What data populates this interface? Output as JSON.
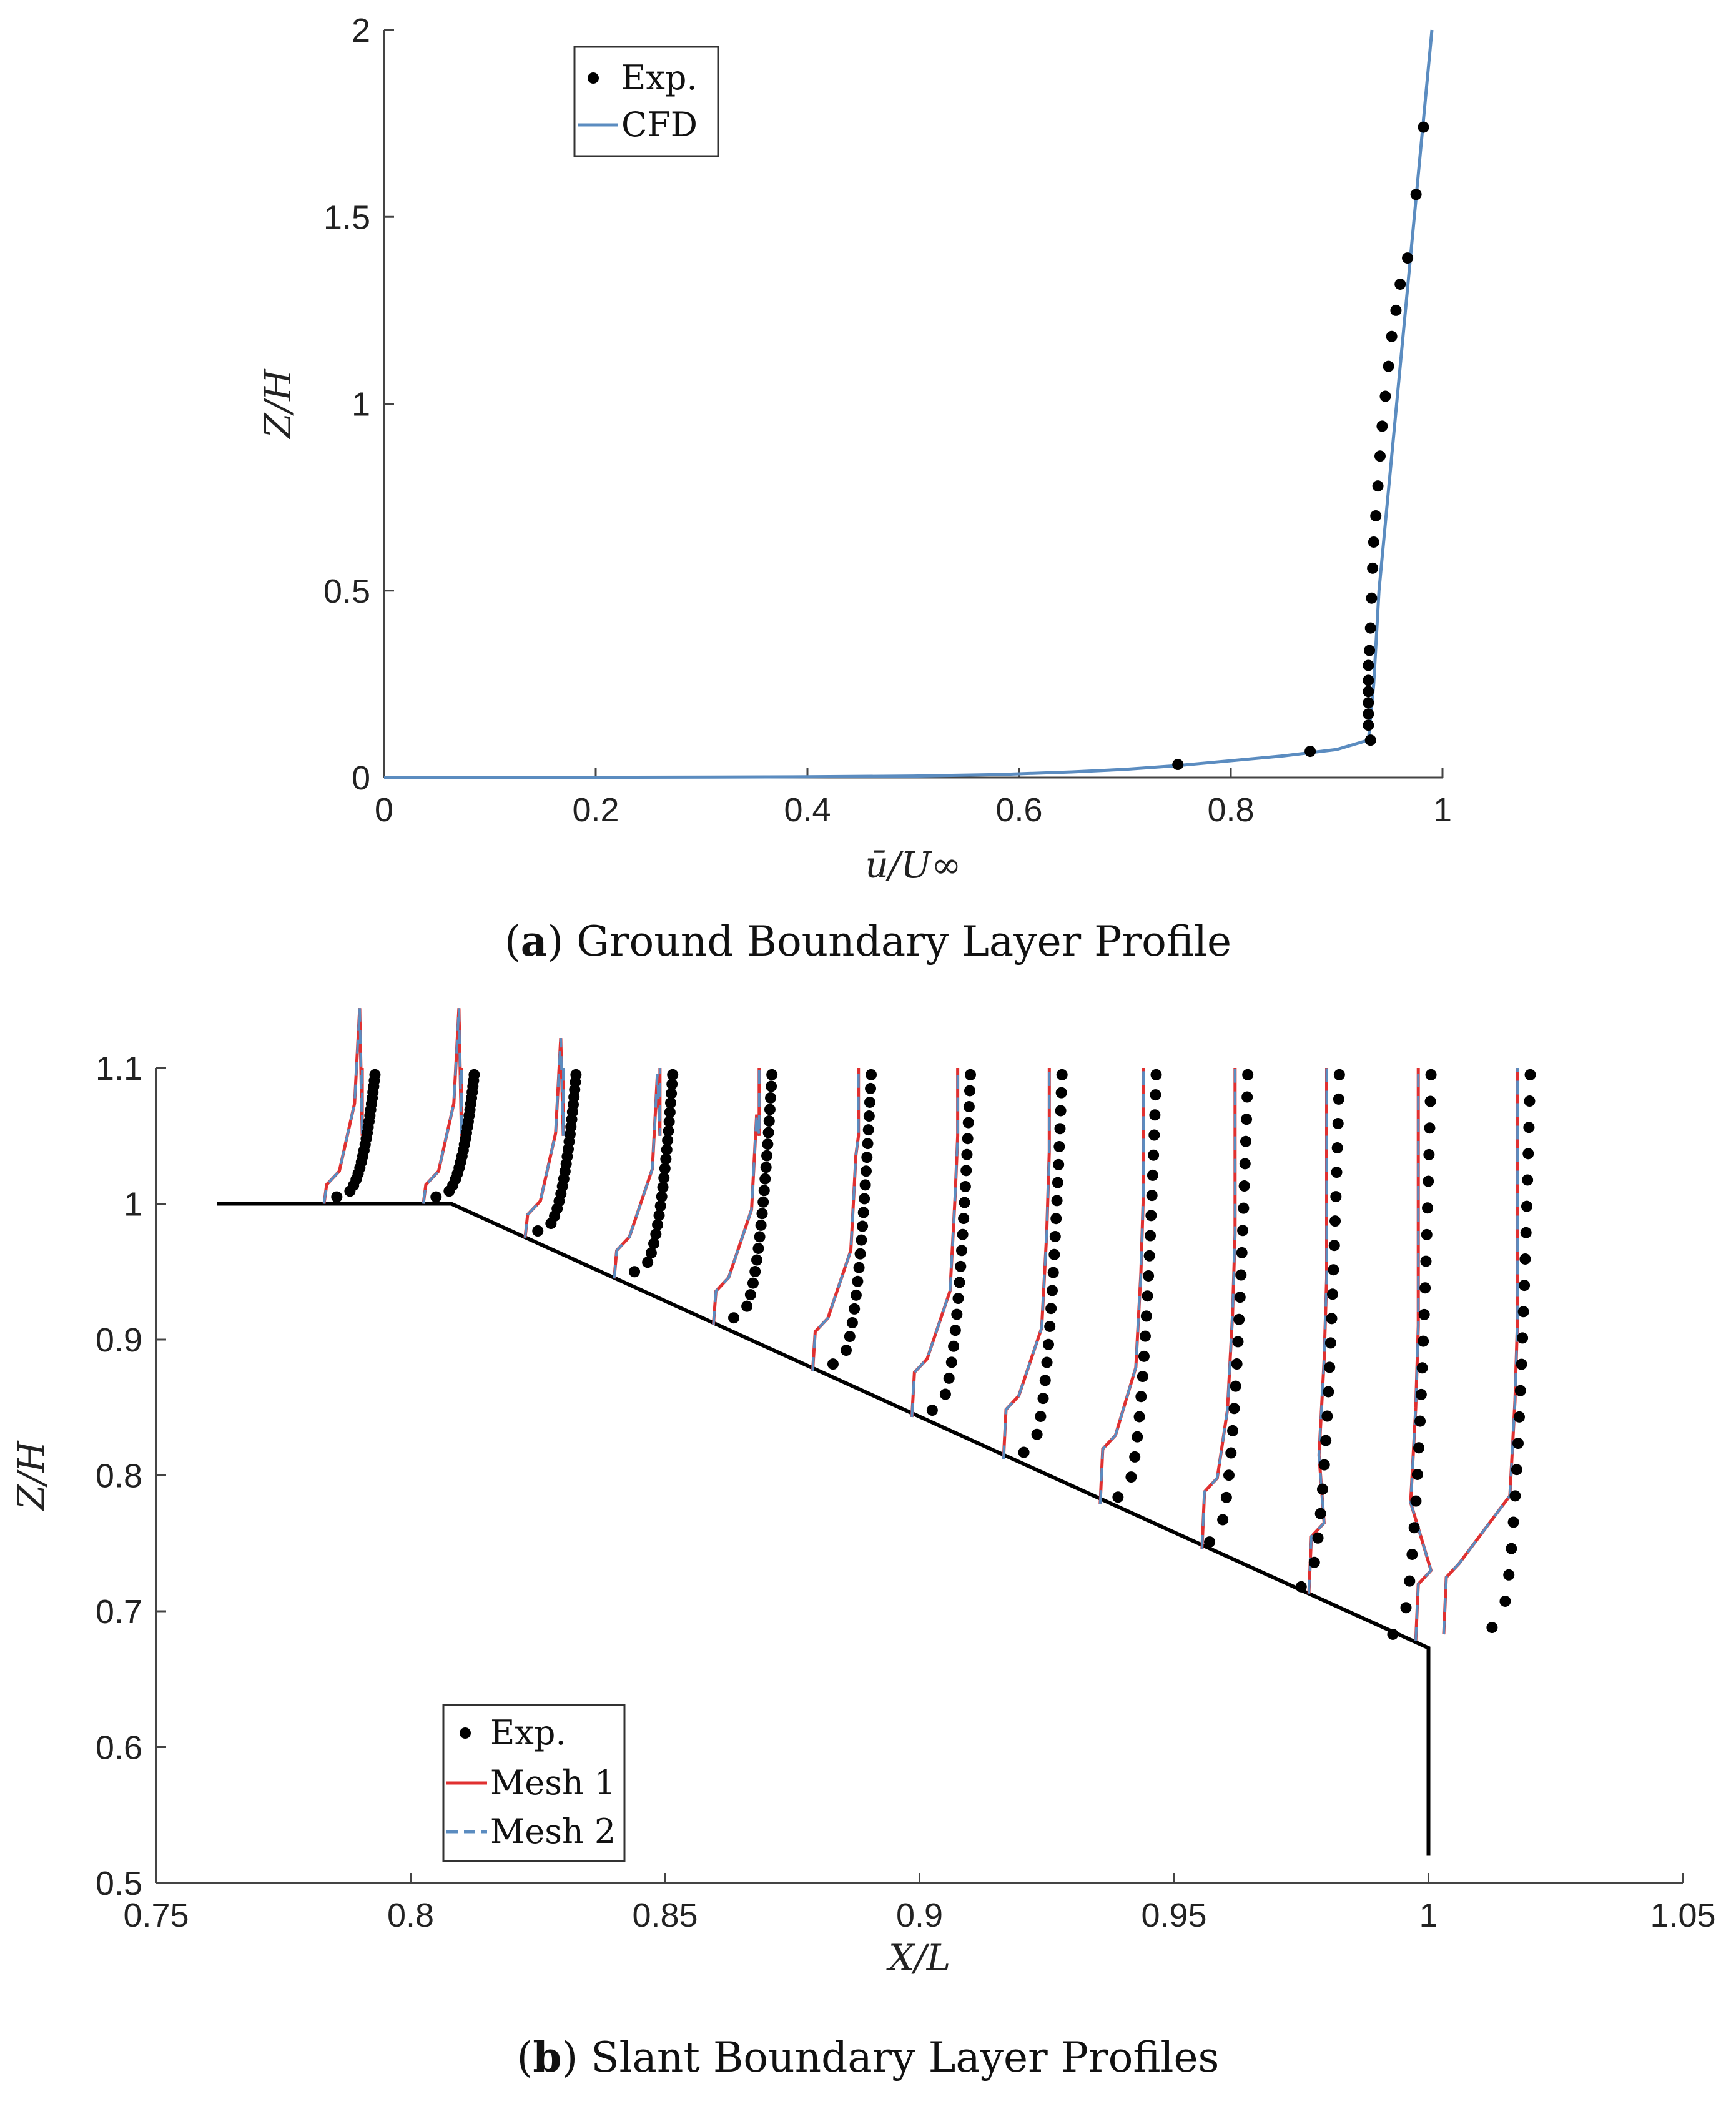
{
  "captions": {
    "a_letter": "a",
    "a_text": "Ground Boundary Layer Profile",
    "b_letter": "b",
    "b_text": "Slant Boundary Layer Profiles"
  },
  "colors": {
    "exp": "#000000",
    "cfd": "#5b8cc0",
    "mesh1": "#e03030",
    "mesh2": "#5b8cc0",
    "geometry": "#000000"
  },
  "chart_data": [
    {
      "type": "line",
      "xlabel": "ū/U∞",
      "ylabel": "Z/H",
      "xlim": [
        0,
        1
      ],
      "ylim": [
        0,
        2
      ],
      "xticks": [
        "0",
        "0.2",
        "0.4",
        "0.6",
        "0.8",
        "1"
      ],
      "yticks": [
        "0",
        "0.5",
        "1",
        "1.5",
        "2"
      ],
      "grid": false,
      "legend": {
        "position": "top-left",
        "entries": [
          "Exp.",
          "CFD"
        ]
      },
      "series": [
        {
          "name": "Exp.",
          "style": "markers",
          "x": [
            0.75,
            0.875,
            0.932,
            0.93,
            0.93,
            0.93,
            0.93,
            0.93,
            0.93,
            0.931,
            0.932,
            0.933,
            0.934,
            0.935,
            0.937,
            0.939,
            0.941,
            0.943,
            0.946,
            0.949,
            0.952,
            0.956,
            0.96,
            0.967,
            0.975,
            0.982
          ],
          "y": [
            0.035,
            0.07,
            0.1,
            0.14,
            0.17,
            0.2,
            0.23,
            0.26,
            0.3,
            0.34,
            0.4,
            0.48,
            0.56,
            0.63,
            0.7,
            0.78,
            0.86,
            0.94,
            1.02,
            1.1,
            1.18,
            1.25,
            1.32,
            1.39,
            1.56,
            1.74
          ]
        },
        {
          "name": "CFD",
          "style": "line",
          "x": [
            0,
            0.2,
            0.4,
            0.5,
            0.58,
            0.65,
            0.7,
            0.75,
            0.8,
            0.85,
            0.9,
            0.93,
            0.935,
            0.94,
            0.95,
            0.96,
            0.97,
            0.98,
            0.99
          ],
          "y": [
            0,
            0.0005,
            0.002,
            0.004,
            0.008,
            0.015,
            0.022,
            0.032,
            0.045,
            0.058,
            0.075,
            0.1,
            0.25,
            0.5,
            0.8,
            1.1,
            1.4,
            1.7,
            2.0
          ]
        }
      ]
    },
    {
      "type": "line",
      "xlabel": "X/L",
      "ylabel": "Z/H",
      "xlim": [
        0.75,
        1.05
      ],
      "ylim": [
        0.5,
        1.1
      ],
      "xticks": [
        "0.75",
        "0.8",
        "0.85",
        "0.9",
        "0.95",
        "1",
        "1.05"
      ],
      "yticks": [
        "0.5",
        "0.6",
        "0.7",
        "0.8",
        "0.9",
        "1",
        "1.1"
      ],
      "grid": false,
      "legend": {
        "position": "bottom-left",
        "entries": [
          "Exp.",
          "Mesh 1",
          "Mesh 2"
        ]
      },
      "geometry": {
        "x": [
          0.762,
          0.808,
          1.0,
          1.0
        ],
        "y": [
          1.0,
          1.0,
          0.673,
          0.52
        ]
      },
      "profiles": [
        {
          "x0": 0.783,
          "xwall": 0.783,
          "ywall": 1.0,
          "dcfd": 0.0075,
          "dexp": 0.0075
        },
        {
          "x0": 0.8025,
          "xwall": 0.8025,
          "ywall": 1.0,
          "dcfd": 0.0075,
          "dexp": 0.0075
        },
        {
          "x0": 0.8225,
          "xwall": 0.8225,
          "ywall": 0.975,
          "dcfd": 0.0075,
          "dexp": 0.0075
        },
        {
          "x0": 0.8415,
          "xwall": 0.84,
          "ywall": 0.945,
          "dcfd": 0.0075,
          "dexp": 0.0075
        },
        {
          "x0": 0.861,
          "xwall": 0.8595,
          "ywall": 0.911,
          "dcfd": 0.0075,
          "dexp": 0.0075
        },
        {
          "x0": 0.8805,
          "xwall": 0.879,
          "ywall": 0.877,
          "dcfd": 0.0075,
          "dexp": 0.0075
        },
        {
          "x0": 0.9,
          "xwall": 0.8985,
          "ywall": 0.843,
          "dcfd": 0.0075,
          "dexp": 0.0075
        },
        {
          "x0": 0.918,
          "xwall": 0.9165,
          "ywall": 0.812,
          "dcfd": 0.0075,
          "dexp": 0.0075
        },
        {
          "x0": 0.9365,
          "xwall": 0.9355,
          "ywall": 0.779,
          "dcfd": 0.0075,
          "dexp": 0.0075
        },
        {
          "x0": 0.9545,
          "xwall": 0.9555,
          "ywall": 0.746,
          "dcfd": 0.0075,
          "dexp": 0.0075
        },
        {
          "x0": 0.9725,
          "xwall": 0.9765,
          "ywall": 0.713,
          "dcfd": 0.0075,
          "dexp": 0.0075
        },
        {
          "x0": 0.9905,
          "xwall": 0.9975,
          "ywall": 0.678,
          "dcfd": 0.0075,
          "dexp": 0.0075
        },
        {
          "x0": 1.01,
          "xwall": 1.003,
          "ywall": 0.683,
          "dcfd": 0.0075,
          "dexp": 0.0075
        }
      ]
    }
  ]
}
